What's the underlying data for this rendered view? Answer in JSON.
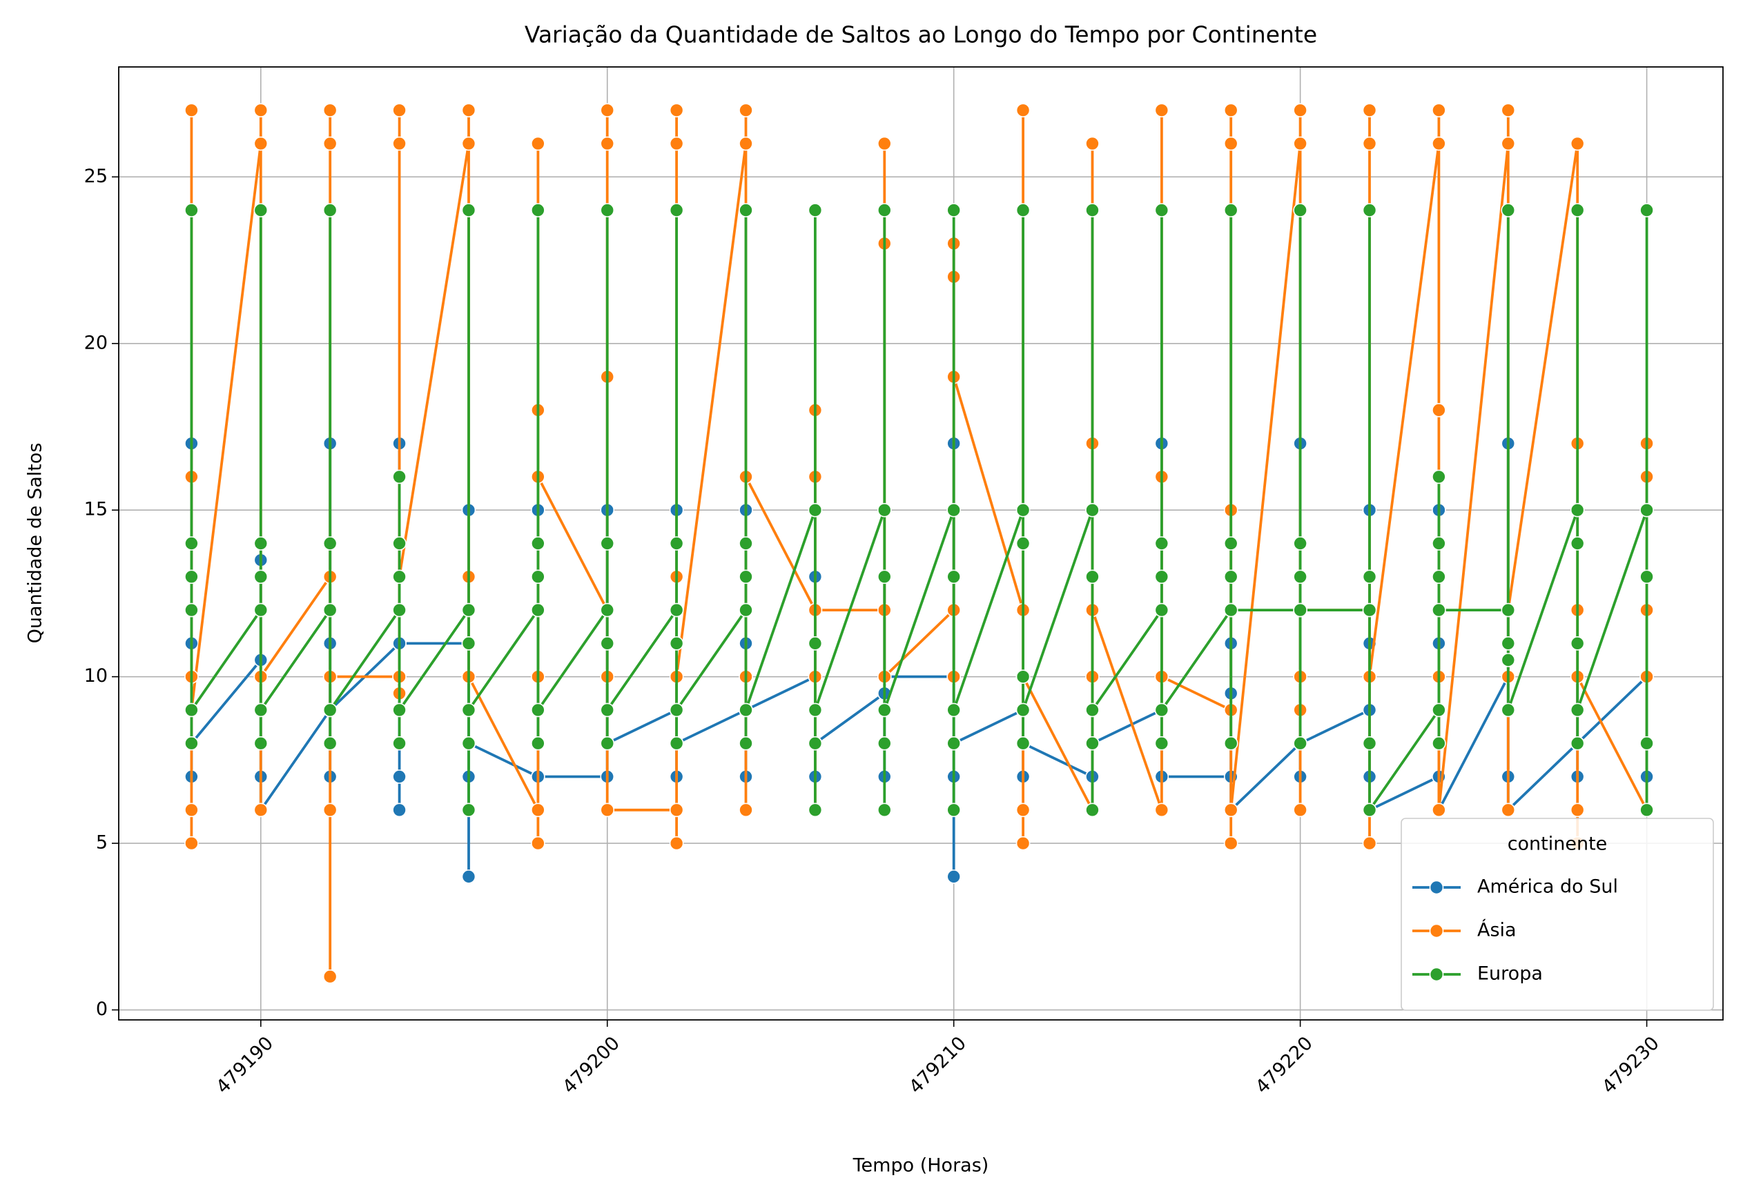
{
  "chart_data": {
    "type": "line",
    "title": "Variação da Quantidade de Saltos ao Longo do Tempo por Continente",
    "x_label": "Tempo (Horas)",
    "y_label": "Quantidade de Saltos",
    "xlim": [
      479185.9,
      479232.2
    ],
    "ylim": [
      -0.3,
      28.3
    ],
    "xticks": [
      479190,
      479200,
      479210,
      479220,
      479230
    ],
    "yticks": [
      0,
      5,
      10,
      15,
      20,
      25
    ],
    "grid": true,
    "legend_title": "continente",
    "legend_position": "lower right",
    "series": [
      {
        "name": "América do Sul",
        "color": "#1f77b4",
        "x": [
          479188,
          479188,
          479188,
          479188,
          479188,
          479190,
          479190,
          479190,
          479190,
          479192,
          479192,
          479192,
          479192,
          479192,
          479194,
          479194,
          479194,
          479194,
          479194,
          479196,
          479196,
          479196,
          479196,
          479196,
          479198,
          479198,
          479198,
          479200,
          479200,
          479200,
          479202,
          479202,
          479202,
          479202,
          479204,
          479204,
          479204,
          479204,
          479204,
          479206,
          479206,
          479206,
          479206,
          479206,
          479208,
          479208,
          479208,
          479208,
          479210,
          479210,
          479210,
          479210,
          479210,
          479212,
          479212,
          479212,
          479212,
          479214,
          479214,
          479214,
          479214,
          479216,
          479216,
          479216,
          479216,
          479218,
          479218,
          479218,
          479218,
          479220,
          479220,
          479220,
          479220,
          479222,
          479222,
          479222,
          479222,
          479222,
          479222,
          479224,
          479224,
          479224,
          479224,
          479226,
          479226,
          479226,
          479226,
          479228,
          479228,
          479228,
          479228,
          479230,
          479230
        ],
        "values": [
          17,
          11,
          7,
          12,
          8,
          10.5,
          13.5,
          7,
          6,
          9,
          17,
          11,
          7,
          9,
          11,
          17,
          7,
          6,
          11,
          11,
          15,
          4,
          7,
          8,
          7,
          15,
          7,
          7,
          15,
          8,
          9,
          15,
          7,
          8,
          9,
          15,
          11,
          7,
          9,
          10,
          13,
          9,
          7,
          8,
          9.5,
          13,
          7,
          10,
          10,
          17,
          7,
          4,
          8,
          9,
          10,
          7,
          8,
          7,
          12,
          6,
          8,
          9,
          17,
          10,
          7,
          7,
          11,
          9.5,
          6,
          8,
          17,
          7,
          8,
          9,
          15,
          11,
          10,
          7,
          6,
          7,
          15,
          11,
          6,
          10,
          17,
          7,
          6,
          8,
          10,
          7,
          8,
          10,
          7
        ]
      },
      {
        "name": "Ásia",
        "color": "#ff7f0e",
        "x": [
          479188,
          479188,
          479188,
          479188,
          479188,
          479188,
          479190,
          479190,
          479190,
          479190,
          479190,
          479192,
          479192,
          479192,
          479192,
          479192,
          479192,
          479192,
          479194,
          479194,
          479194,
          479194,
          479194,
          479194,
          479196,
          479196,
          479196,
          479196,
          479196,
          479198,
          479198,
          479198,
          479198,
          479198,
          479198,
          479200,
          479200,
          479200,
          479200,
          479200,
          479200,
          479202,
          479202,
          479202,
          479202,
          479202,
          479202,
          479204,
          479204,
          479204,
          479204,
          479204,
          479204,
          479206,
          479206,
          479206,
          479206,
          479206,
          479206,
          479208,
          479208,
          479208,
          479208,
          479210,
          479210,
          479210,
          479210,
          479210,
          479212,
          479212,
          479212,
          479212,
          479212,
          479212,
          479214,
          479214,
          479214,
          479214,
          479214,
          479214,
          479216,
          479216,
          479216,
          479216,
          479218,
          479218,
          479218,
          479218,
          479218,
          479218,
          479218,
          479220,
          479220,
          479220,
          479220,
          479220,
          479220,
          479222,
          479222,
          479222,
          479222,
          479222,
          479222,
          479222,
          479224,
          479224,
          479224,
          479224,
          479224,
          479226,
          479226,
          479226,
          479226,
          479226,
          479228,
          479228,
          479228,
          479228,
          479228,
          479228,
          479228,
          479230,
          479230,
          479230,
          479230,
          479230
        ],
        "values": [
          27,
          16,
          10,
          6,
          5,
          9,
          26,
          27,
          10,
          6,
          10,
          13,
          27,
          26,
          10,
          6,
          1,
          10,
          10,
          27,
          26,
          9.5,
          10,
          13,
          26,
          27,
          13,
          10,
          10,
          6,
          26,
          18,
          10,
          5,
          16,
          12,
          27,
          26,
          19,
          10,
          6,
          6,
          27,
          26,
          13,
          5,
          10,
          26,
          27,
          16,
          10,
          6,
          16,
          12,
          18,
          16,
          10,
          6,
          12,
          12,
          26,
          23,
          10,
          12,
          23,
          22,
          10,
          19,
          12,
          27,
          10,
          6,
          5,
          10,
          6,
          26,
          17,
          12,
          10,
          12,
          6,
          27,
          16,
          10,
          9,
          27,
          26,
          15,
          6,
          5,
          6,
          26,
          27,
          10,
          9,
          6,
          12,
          12,
          27,
          26,
          10,
          6,
          5,
          10,
          26,
          27,
          18,
          10,
          6,
          26,
          27,
          6,
          10,
          12,
          26,
          17,
          12,
          10,
          6,
          5,
          10,
          6,
          17,
          16,
          12,
          10
        ]
      },
      {
        "name": "Europa",
        "color": "#2ca02c",
        "x": [
          479188,
          479188,
          479188,
          479188,
          479188,
          479188,
          479190,
          479190,
          479190,
          479190,
          479190,
          479190,
          479192,
          479192,
          479192,
          479192,
          479192,
          479194,
          479194,
          479194,
          479194,
          479194,
          479194,
          479196,
          479196,
          479196,
          479196,
          479196,
          479196,
          479198,
          479198,
          479198,
          479198,
          479198,
          479198,
          479200,
          479200,
          479200,
          479200,
          479200,
          479200,
          479202,
          479202,
          479202,
          479202,
          479202,
          479202,
          479204,
          479204,
          479204,
          479204,
          479204,
          479204,
          479206,
          479206,
          479206,
          479206,
          479206,
          479206,
          479208,
          479208,
          479208,
          479208,
          479208,
          479208,
          479210,
          479210,
          479210,
          479210,
          479210,
          479210,
          479212,
          479212,
          479212,
          479212,
          479212,
          479212,
          479214,
          479214,
          479214,
          479214,
          479214,
          479214,
          479216,
          479216,
          479216,
          479216,
          479216,
          479216,
          479218,
          479218,
          479218,
          479218,
          479218,
          479218,
          479220,
          479220,
          479220,
          479220,
          479220,
          479220,
          479222,
          479222,
          479222,
          479222,
          479222,
          479224,
          479224,
          479224,
          479224,
          479224,
          479224,
          479226,
          479226,
          479226,
          479226,
          479226,
          479228,
          479228,
          479228,
          479228,
          479228,
          479228,
          479230,
          479230,
          479230,
          479230,
          479230
        ],
        "values": [
          24,
          14,
          13,
          12,
          8,
          9,
          12,
          24,
          14,
          13,
          8,
          9,
          12,
          24,
          14,
          8,
          9,
          12,
          16,
          14,
          13,
          8,
          9,
          12,
          24,
          11,
          8,
          6,
          9,
          12,
          24,
          14,
          13,
          8,
          9,
          12,
          24,
          14,
          11,
          8,
          9,
          12,
          24,
          14,
          11,
          8,
          9,
          12,
          24,
          14,
          13,
          8,
          9,
          15,
          24,
          11,
          8,
          6,
          9,
          15,
          24,
          13,
          8,
          6,
          9,
          15,
          24,
          13,
          8,
          6,
          9,
          15,
          24,
          14,
          10,
          8,
          9,
          15,
          24,
          13,
          8,
          6,
          9,
          12,
          24,
          14,
          13,
          8,
          9,
          12,
          24,
          14,
          13,
          8,
          12,
          12,
          24,
          14,
          13,
          8,
          12,
          12,
          24,
          13,
          8,
          6,
          9,
          16,
          14,
          13,
          8,
          12,
          12,
          24,
          11,
          10.5,
          9,
          15,
          24,
          14,
          11,
          8,
          9,
          15,
          24,
          13,
          8,
          6
        ]
      }
    ]
  }
}
